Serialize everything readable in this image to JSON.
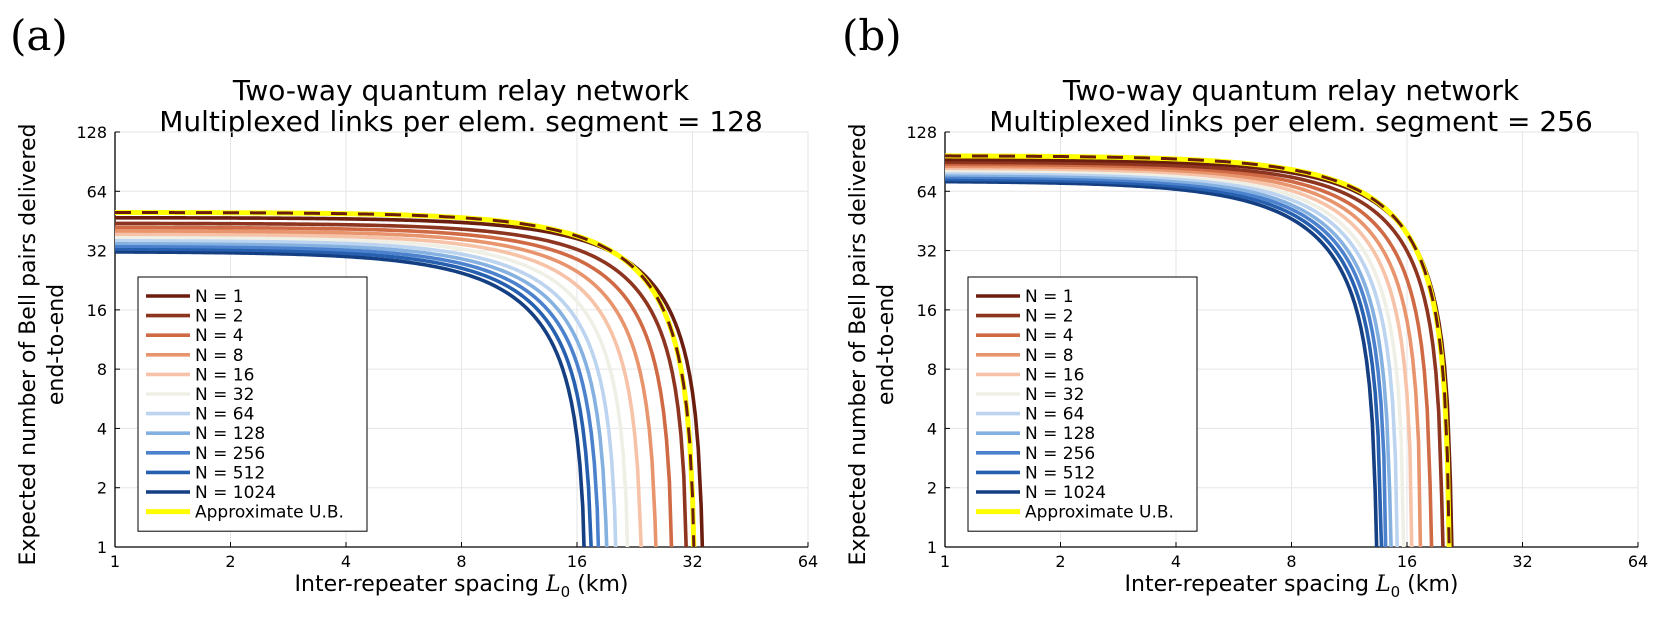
{
  "chart_data": [
    {
      "type": "line",
      "panel_label": "(a)",
      "title": [
        "Two-way quantum relay network",
        "Multiplexed links per elem. segment = 128"
      ],
      "xlabel_parts": {
        "prefix": "Inter-repeater spacing ",
        "symbol": "L",
        "subscript": "0",
        "suffix": " (km)"
      },
      "ylabel": [
        "Expected number of Bell pairs delivered",
        "end-to-end"
      ],
      "xscale": "log2",
      "yscale": "log2",
      "xlim": [
        1,
        64
      ],
      "ylim": [
        1,
        128
      ],
      "xticks": [
        1,
        2,
        4,
        8,
        16,
        32,
        64
      ],
      "yticks": [
        1,
        2,
        4,
        8,
        16,
        32,
        64,
        128
      ],
      "grid": true,
      "legend_position": "bottom-left",
      "series": [
        {
          "name": "N = 1",
          "color": "#6b1d0e",
          "a": 47.0,
          "L0": 34.3
        },
        {
          "name": "N = 2",
          "color": "#8e3520",
          "a": 44.0,
          "L0": 31.2
        },
        {
          "name": "N = 4",
          "color": "#cf6a45",
          "a": 42.0,
          "L0": 28.6
        },
        {
          "name": "N = 8",
          "color": "#e8946d",
          "a": 40.3,
          "L0": 26.0
        },
        {
          "name": "N = 16",
          "color": "#f6c3a8",
          "a": 38.8,
          "L0": 23.8
        },
        {
          "name": "N = 32",
          "color": "#f0efe6",
          "a": 37.5,
          "L0": 22.0
        },
        {
          "name": "N = 64",
          "color": "#bcd4ef",
          "a": 36.2,
          "L0": 20.5
        },
        {
          "name": "N = 128",
          "color": "#85b1e1",
          "a": 35.0,
          "L0": 19.4
        },
        {
          "name": "N = 256",
          "color": "#4c82cd",
          "a": 33.8,
          "L0": 18.5
        },
        {
          "name": "N = 512",
          "color": "#2860b0",
          "a": 32.7,
          "L0": 17.7
        },
        {
          "name": "N = 1024",
          "color": "#143f83",
          "a": 31.6,
          "L0": 17.0
        },
        {
          "name": "Approximate U.B.",
          "color": "#ffff00",
          "a": 50.0,
          "L0": 32.6,
          "style": "ub"
        }
      ]
    },
    {
      "type": "line",
      "panel_label": "(b)",
      "title": [
        "Two-way quantum relay network",
        "Multiplexed links per elem. segment = 256"
      ],
      "xlabel_parts": {
        "prefix": "Inter-repeater spacing ",
        "symbol": "L",
        "subscript": "0",
        "suffix": " (km)"
      },
      "ylabel": [
        "Expected number of Bell pairs delivered",
        "end-to-end"
      ],
      "xscale": "log2",
      "yscale": "log2",
      "xlim": [
        1,
        64
      ],
      "ylim": [
        1,
        128
      ],
      "xticks": [
        1,
        2,
        4,
        8,
        16,
        32,
        64
      ],
      "yticks": [
        1,
        2,
        4,
        8,
        16,
        32,
        64,
        128
      ],
      "grid": true,
      "legend_position": "bottom-left",
      "series": [
        {
          "name": "N = 1",
          "color": "#6b1d0e",
          "a": 93.0,
          "L0": 21.0
        },
        {
          "name": "N = 2",
          "color": "#8e3520",
          "a": 90.0,
          "L0": 19.9
        },
        {
          "name": "N = 4",
          "color": "#cf6a45",
          "a": 88.0,
          "L0": 18.6
        },
        {
          "name": "N = 8",
          "color": "#e8946d",
          "a": 86.0,
          "L0": 17.5
        },
        {
          "name": "N = 16",
          "color": "#f6c3a8",
          "a": 84.0,
          "L0": 16.6
        },
        {
          "name": "N = 32",
          "color": "#f0efe6",
          "a": 82.0,
          "L0": 15.8
        },
        {
          "name": "N = 64",
          "color": "#bcd4ef",
          "a": 80.0,
          "L0": 15.2
        },
        {
          "name": "N = 128",
          "color": "#85b1e1",
          "a": 78.0,
          "L0": 14.6
        },
        {
          "name": "N = 256",
          "color": "#4c82cd",
          "a": 76.0,
          "L0": 14.2
        },
        {
          "name": "N = 512",
          "color": "#2860b0",
          "a": 74.0,
          "L0": 13.8
        },
        {
          "name": "N = 1024",
          "color": "#143f83",
          "a": 72.0,
          "L0": 13.4
        },
        {
          "name": "Approximate U.B.",
          "color": "#ffff00",
          "a": 97.0,
          "L0": 20.7,
          "style": "ub"
        }
      ]
    }
  ]
}
